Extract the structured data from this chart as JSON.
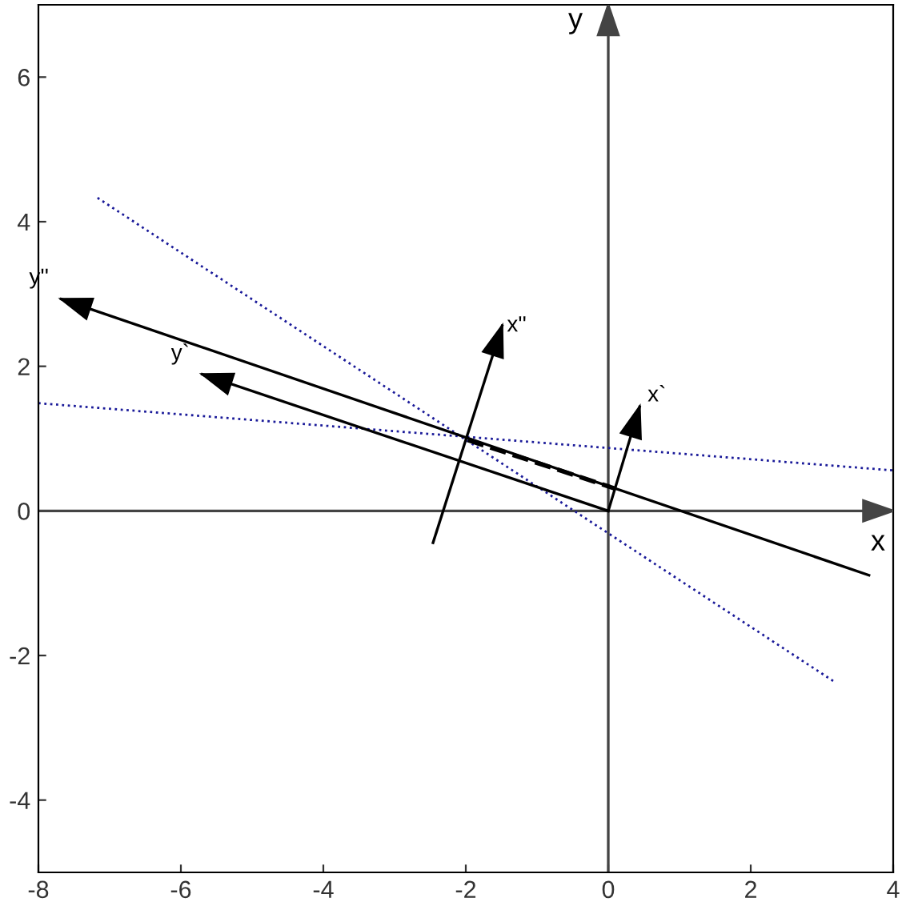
{
  "chart_data": {
    "type": "line",
    "xlim": [
      -8,
      4
    ],
    "ylim": [
      -5,
      7
    ],
    "xticks": [
      -8,
      -6,
      -4,
      -2,
      0,
      2,
      4
    ],
    "yticks": [
      -4,
      -2,
      0,
      2,
      4,
      6
    ],
    "grid": false,
    "marker": "none",
    "series": [
      {
        "color": "#444444",
        "line_style": "solid",
        "x": [
          -8,
          4
        ],
        "values": [
          0,
          0
        ]
      },
      {
        "color": "#444444",
        "line_style": "solid",
        "x": [
          0,
          0
        ],
        "values": [
          -5,
          7
        ]
      },
      {
        "color": "#1a1a99",
        "line_style": "dotted",
        "x": [
          -7.17,
          3.2
        ],
        "values": [
          4.33,
          -2.38
        ]
      },
      {
        "color": "#1a1a99",
        "line_style": "dotted",
        "x": [
          -8,
          4
        ],
        "values": [
          1.49,
          0.56
        ]
      },
      {
        "color": "#000000",
        "line_style": "solid",
        "x": [
          3.66,
          -7.68
        ],
        "values": [
          -0.89,
          2.93
        ]
      },
      {
        "color": "#000000",
        "line_style": "solid",
        "x": [
          0,
          -5.7
        ],
        "values": [
          0,
          1.89
        ]
      },
      {
        "color": "#000000",
        "line_style": "solid",
        "x": [
          0,
          0.44
        ],
        "values": [
          0,
          1.44
        ]
      },
      {
        "color": "#000000",
        "line_style": "solid",
        "x": [
          -2.46,
          -1.49
        ],
        "values": [
          -0.44,
          2.56
        ]
      },
      {
        "color": "#000000",
        "line_style": "dashed",
        "x": [
          -1.97,
          0.09
        ],
        "values": [
          0.98,
          0.31
        ]
      }
    ],
    "annotations": [
      {
        "text": "y",
        "x": 0,
        "y": 7
      },
      {
        "text": "x",
        "x": 4,
        "y": 0
      },
      {
        "text": "y''",
        "x": -7.68,
        "y": 2.93
      },
      {
        "text": "x''",
        "x": -1.49,
        "y": 2.56
      },
      {
        "text": "y`",
        "x": -6.07,
        "y": 2.39
      },
      {
        "text": "x`",
        "x": 0.44,
        "y": 1.44
      }
    ]
  }
}
